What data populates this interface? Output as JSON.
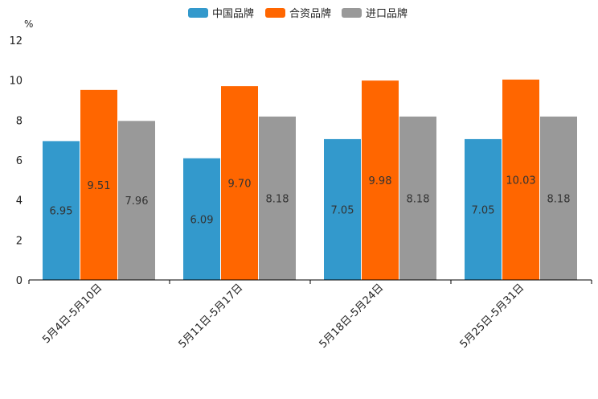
{
  "chart_data": {
    "type": "bar",
    "title": "",
    "xlabel": "",
    "ylabel": "%",
    "ylim": [
      0,
      12
    ],
    "yticks": [
      0,
      2,
      4,
      6,
      8,
      10,
      12
    ],
    "grid": false,
    "legend_position": "top-center",
    "categories": [
      "5月4日-5月10日",
      "5月11日-5月17日",
      "5月18日-5月24日",
      "5月25日-5月31日"
    ],
    "series": [
      {
        "name": "中国品牌",
        "color": "#3399cc",
        "values": [
          6.95,
          6.09,
          7.05,
          7.05
        ],
        "labels": [
          "6.95",
          "6.09",
          "7.05",
          "7.05"
        ]
      },
      {
        "name": "合资品牌",
        "color": "#ff6600",
        "values": [
          9.51,
          9.7,
          9.98,
          10.03
        ],
        "labels": [
          "9.51",
          "9.70",
          "9.98",
          "10.03"
        ]
      },
      {
        "name": "进口品牌",
        "color": "#999999",
        "values": [
          7.96,
          8.18,
          8.18,
          8.18
        ],
        "labels": [
          "7.96",
          "8.18",
          "8.18",
          "8.18"
        ]
      }
    ]
  }
}
